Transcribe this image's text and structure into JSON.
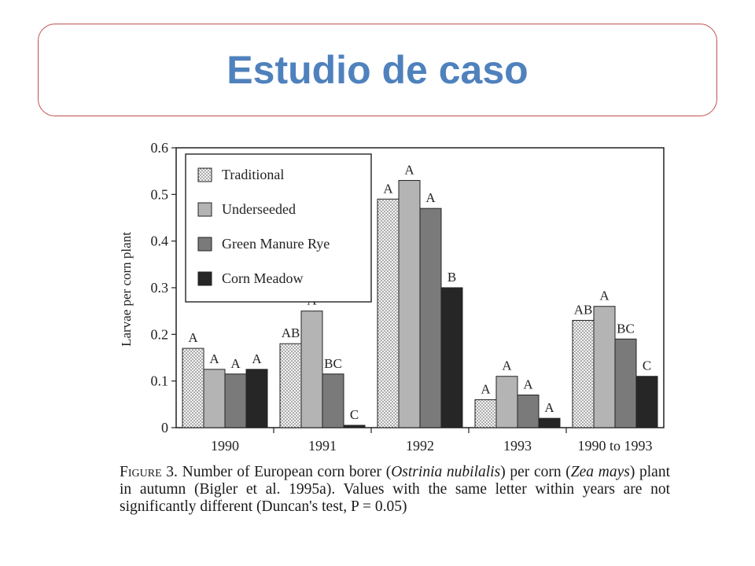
{
  "slide": {
    "title": "Estudio de caso"
  },
  "caption": {
    "lead": "Figure 3.",
    "part1": " Number of European corn borer (",
    "species1": "Ostrinia nubilalis",
    "part2": ") per corn (",
    "species2": "Zea mays",
    "part3": ") plant in autumn (Bigler et al. 1995a). Values with the same letter within years are not significantly different (Duncan's test, P = 0.05)"
  },
  "chart_data": {
    "type": "bar",
    "title": "",
    "xlabel": "",
    "ylabel": "Larvae per corn plant",
    "ylim": [
      0,
      0.6
    ],
    "yticks": [
      "0",
      "0.1",
      "0.2",
      "0.3",
      "0.4",
      "0.5",
      "0.6"
    ],
    "categories": [
      "1990",
      "1991",
      "1992",
      "1993",
      "1990 to 1993"
    ],
    "series": [
      {
        "name": "Traditional",
        "pattern": "dotted",
        "color": "#f4f4f4",
        "values": [
          0.17,
          0.18,
          0.49,
          0.06,
          0.23
        ],
        "letters": [
          "A",
          "AB",
          "A",
          "A",
          "AB"
        ]
      },
      {
        "name": "Underseeded",
        "pattern": "solid",
        "color": "#b4b4b4",
        "values": [
          0.125,
          0.25,
          0.53,
          0.11,
          0.26
        ],
        "letters": [
          "A",
          "A",
          "A",
          "A",
          "A"
        ]
      },
      {
        "name": "Green Manure Rye",
        "pattern": "solid",
        "color": "#7a7a7a",
        "values": [
          0.115,
          0.115,
          0.47,
          0.07,
          0.19
        ],
        "letters": [
          "A",
          "BC",
          "A",
          "A",
          "BC"
        ]
      },
      {
        "name": "Corn Meadow",
        "pattern": "solid",
        "color": "#262626",
        "values": [
          0.125,
          0.005,
          0.3,
          0.02,
          0.11
        ],
        "letters": [
          "A",
          "C",
          "B",
          "A",
          "C"
        ]
      }
    ],
    "legend_position": "top-left",
    "grid": false
  }
}
